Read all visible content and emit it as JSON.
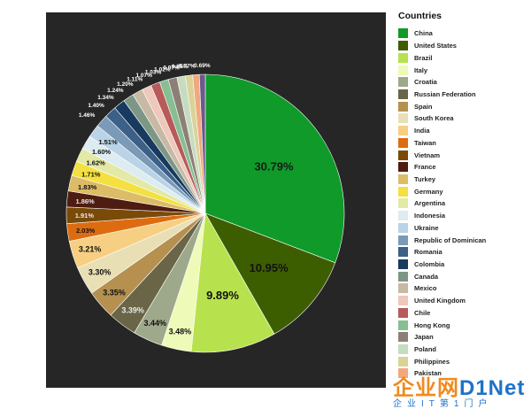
{
  "chart_data": {
    "type": "pie",
    "legend_title": "Countries",
    "legend_position": "right",
    "slices": [
      {
        "label": "China",
        "value": 30.79,
        "display": "30.79%",
        "color": "#0f9a2a"
      },
      {
        "label": "United States",
        "value": 10.95,
        "display": "10.95%",
        "color": "#3d5e00"
      },
      {
        "label": "Brazil",
        "value": 9.89,
        "display": "9.89%",
        "color": "#b7e24d"
      },
      {
        "label": "Italy",
        "value": 3.48,
        "display": "3.48%",
        "color": "#eefab8"
      },
      {
        "label": "Croatia",
        "value": 3.44,
        "display": "3.44%",
        "color": "#9ea88a"
      },
      {
        "label": "Russian Federation",
        "value": 3.39,
        "display": "3.39%",
        "color": "#6b6548"
      },
      {
        "label": "Spain",
        "value": 3.35,
        "display": "3.35%",
        "color": "#b5904f"
      },
      {
        "label": "South Korea",
        "value": 3.3,
        "display": "3.30%",
        "color": "#e9dfb5"
      },
      {
        "label": "India",
        "value": 3.21,
        "display": "3.21%",
        "color": "#f7cf82"
      },
      {
        "label": "Taiwan",
        "value": 2.03,
        "display": "2.03%",
        "color": "#dd6c10"
      },
      {
        "label": "Vietnam",
        "value": 1.91,
        "display": "1.91%",
        "color": "#7a4a08"
      },
      {
        "label": "France",
        "value": 1.86,
        "display": "1.86%",
        "color": "#4e1c10"
      },
      {
        "label": "Turkey",
        "value": 1.83,
        "display": "1.83%",
        "color": "#dcbc66"
      },
      {
        "label": "Germany",
        "value": 1.71,
        "display": "1.71%",
        "color": "#f4e040"
      },
      {
        "label": "Argentina",
        "value": 1.62,
        "display": "1.62%",
        "color": "#e3e9a6"
      },
      {
        "label": "Indonesia",
        "value": 1.6,
        "display": "1.60%",
        "color": "#dcecf0"
      },
      {
        "label": "Ukraine",
        "value": 1.51,
        "display": "1.51%",
        "color": "#bad3e6"
      },
      {
        "label": "Republic of Dominican",
        "value": 1.46,
        "display": "1.46%",
        "color": "#7a9ab8"
      },
      {
        "label": "Romania",
        "value": 1.4,
        "display": "1.40%",
        "color": "#3c6088"
      },
      {
        "label": "Colombia",
        "value": 1.34,
        "display": "1.34%",
        "color": "#173a5e"
      },
      {
        "label": "Canada",
        "value": 1.24,
        "display": "1.24%",
        "color": "#7d9685"
      },
      {
        "label": "Mexico",
        "value": 1.2,
        "display": "1.20%",
        "color": "#c7b9a4"
      },
      {
        "label": "United Kingdom",
        "value": 1.11,
        "display": "1.11%",
        "color": "#eec8ba"
      },
      {
        "label": "Chile",
        "value": 1.07,
        "display": "1.07%",
        "color": "#b85a5a"
      },
      {
        "label": "Hong Kong",
        "value": 1.03,
        "display": "1.03%",
        "color": "#86bf92"
      },
      {
        "label": "Japan",
        "value": 1.02,
        "display": "1.02%",
        "color": "#8e7f76"
      },
      {
        "label": "Poland",
        "value": 0.97,
        "display": "0.97%",
        "color": "#c6dcc0"
      },
      {
        "label": "Philippines",
        "value": 0.85,
        "display": "0.85%",
        "color": "#d9d39a"
      },
      {
        "label": "Pakistan",
        "value": 0.77,
        "display": "0.77%",
        "color": "#f2a87e"
      },
      {
        "label": "",
        "value": 0.69,
        "display": "0.69%",
        "color": "#6a5a8e"
      }
    ]
  },
  "watermark": {
    "brand_main": "企业网",
    "brand_net": "D1Net",
    "tagline": "企业IT第1门户"
  }
}
